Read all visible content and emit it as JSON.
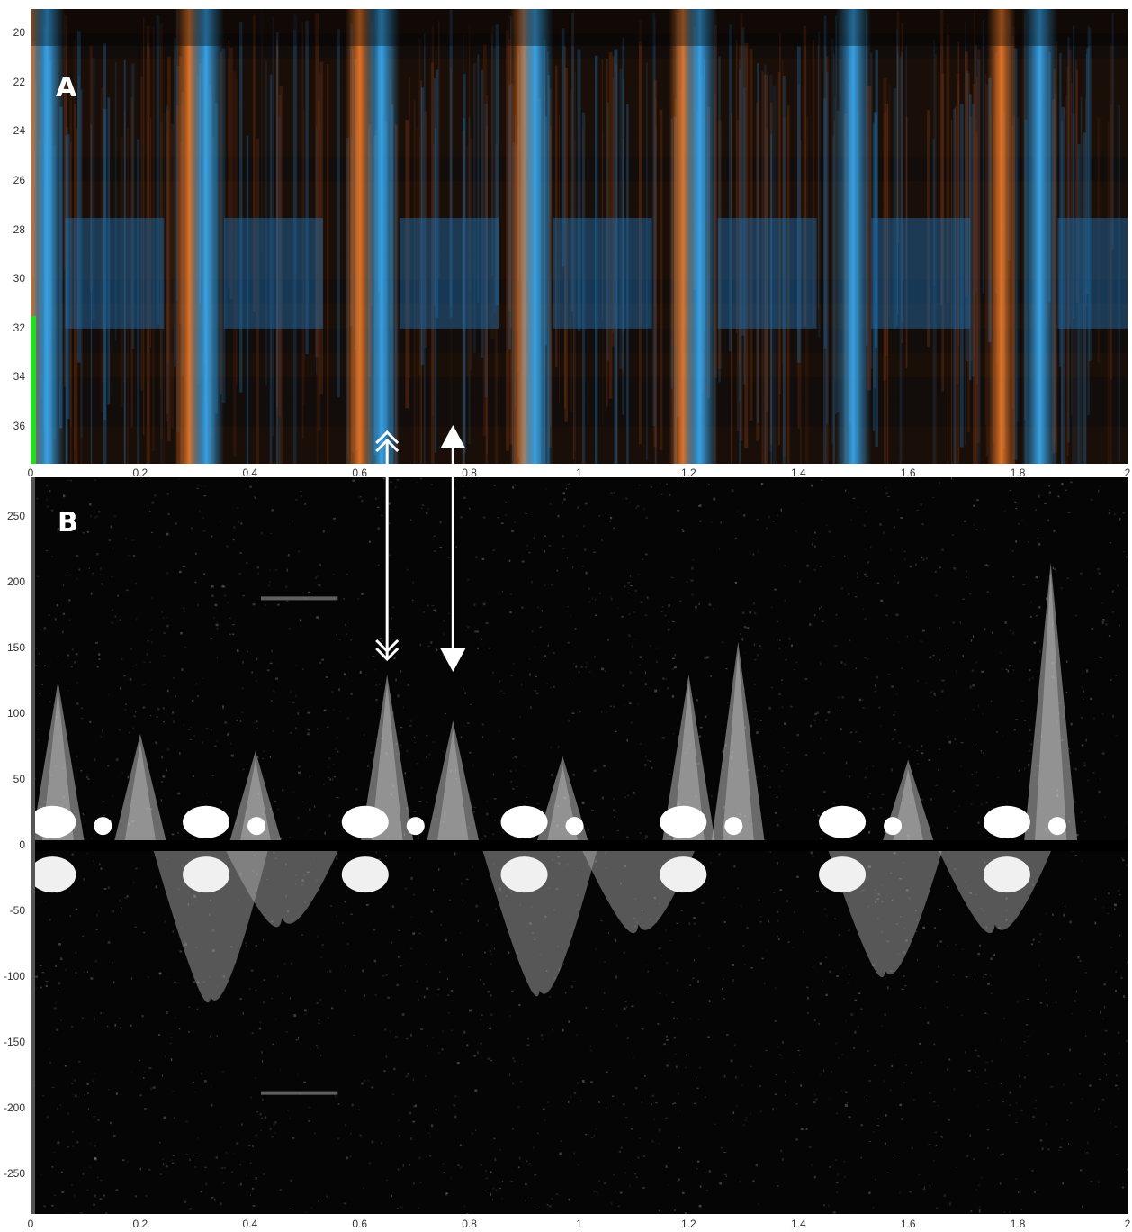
{
  "chart_data": [
    {
      "panel_label": "A",
      "type": "heatmap",
      "description_colors": {
        "positive": "#e8782a",
        "negative": "#2e9be0",
        "background": "#160d08"
      },
      "xlim": [
        0,
        2
      ],
      "ylim": [
        19,
        37.5
      ],
      "y_reversed": true,
      "xticks": [
        "0",
        "0.2",
        "0.4",
        "0.6",
        "0.8",
        "1",
        "1.2",
        "1.4",
        "1.6",
        "1.8",
        "2"
      ],
      "yticks": [
        "20",
        "22",
        "24",
        "26",
        "28",
        "30",
        "32",
        "34",
        "36"
      ],
      "orange_bands_x": [
        0.0,
        0.29,
        0.6,
        0.9,
        1.19,
        1.77
      ],
      "blue_bands_x": [
        0.03,
        0.32,
        0.64,
        0.92,
        1.22,
        1.5,
        1.84
      ],
      "marker_color": "#22dd22"
    },
    {
      "panel_label": "B",
      "type": "spectrogram",
      "xlim": [
        0,
        2
      ],
      "ylim": [
        -280,
        280
      ],
      "xticks": [
        "0",
        "0.2",
        "0.4",
        "0.6",
        "0.8",
        "1",
        "1.2",
        "1.4",
        "1.6",
        "1.8",
        "2"
      ],
      "yticks": [
        "250",
        "200",
        "150",
        "100",
        "50",
        "0",
        "-50",
        "-100",
        "-150",
        "-200",
        "-250"
      ],
      "positive_peaks": [
        {
          "x": 0.05,
          "y": 125
        },
        {
          "x": 0.2,
          "y": 85
        },
        {
          "x": 0.41,
          "y": 72
        },
        {
          "x": 0.65,
          "y": 130
        },
        {
          "x": 0.77,
          "y": 95
        },
        {
          "x": 0.97,
          "y": 68
        },
        {
          "x": 1.2,
          "y": 130
        },
        {
          "x": 1.29,
          "y": 155
        },
        {
          "x": 1.6,
          "y": 65
        },
        {
          "x": 1.86,
          "y": 215
        }
      ],
      "negative_troughs": [
        {
          "x": 0.32,
          "y": -115
        },
        {
          "x": 0.45,
          "y": -55
        },
        {
          "x": 0.92,
          "y": -110
        },
        {
          "x": 1.1,
          "y": -60
        },
        {
          "x": 1.55,
          "y": -95
        },
        {
          "x": 1.75,
          "y": -60
        }
      ],
      "static_lines": [
        {
          "x0": 0.42,
          "x1": 0.56,
          "y": 188
        },
        {
          "x0": 0.42,
          "x1": 0.56,
          "y": -188
        }
      ]
    }
  ],
  "arrows": [
    {
      "style": "double-chevron",
      "x": 0.65
    },
    {
      "style": "solid-triangle",
      "x": 0.77
    }
  ]
}
